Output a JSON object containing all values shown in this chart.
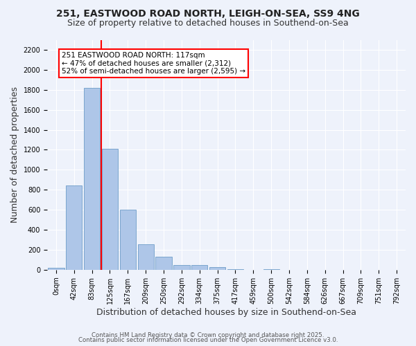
{
  "title_line1": "251, EASTWOOD ROAD NORTH, LEIGH-ON-SEA, SS9 4NG",
  "title_line2": "Size of property relative to detached houses in Southend-on-Sea",
  "xlabel": "Distribution of detached houses by size in Southend-on-Sea",
  "ylabel": "Number of detached properties",
  "bar_values": [
    20,
    840,
    1820,
    1210,
    600,
    255,
    130,
    50,
    50,
    30,
    5,
    0,
    5,
    0,
    0,
    0,
    0,
    0,
    0,
    0
  ],
  "bin_labels": [
    "0sqm",
    "42sqm",
    "83sqm",
    "125sqm",
    "167sqm",
    "209sqm",
    "250sqm",
    "292sqm",
    "334sqm",
    "375sqm",
    "417sqm",
    "459sqm",
    "500sqm",
    "542sqm",
    "584sqm",
    "626sqm",
    "667sqm",
    "709sqm",
    "751sqm",
    "792sqm"
  ],
  "bar_color": "#aec6e8",
  "bar_edge_color": "#5a8fc0",
  "vline_color": "red",
  "annotation_box_text": "251 EASTWOOD ROAD NORTH: 117sqm\n← 47% of detached houses are smaller (2,312)\n52% of semi-detached houses are larger (2,595) →",
  "annotation_box_color": "white",
  "annotation_box_edge_color": "red",
  "ylim": [
    0,
    2300
  ],
  "yticks": [
    0,
    200,
    400,
    600,
    800,
    1000,
    1200,
    1400,
    1600,
    1800,
    2000,
    2200
  ],
  "background_color": "#eef2fb",
  "grid_color": "white",
  "footer_line1": "Contains HM Land Registry data © Crown copyright and database right 2025.",
  "footer_line2": "Contains public sector information licensed under the Open Government Licence v3.0.",
  "title_fontsize": 10,
  "axis_label_fontsize": 9,
  "tick_fontsize": 7,
  "annotation_fontsize": 7.5
}
